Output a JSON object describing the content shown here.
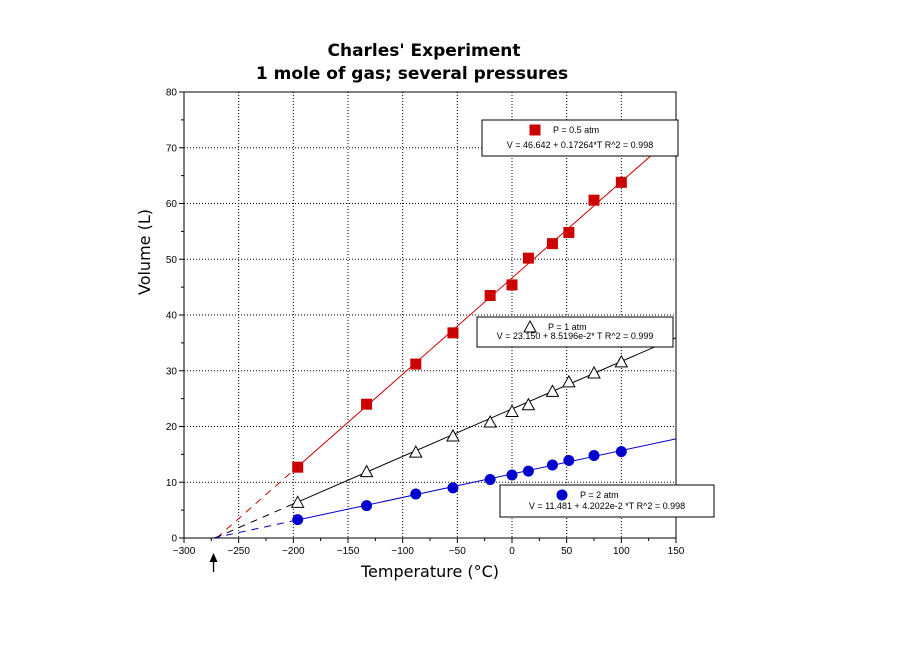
{
  "chart_data": {
    "type": "scatter",
    "title_line1": "Charles' Experiment",
    "title_line2": "1 mole of gas;   several pressures",
    "xlabel": "Temperature (°C)",
    "ylabel": "Volume (L)",
    "xlim": [
      -300,
      150
    ],
    "ylim": [
      0,
      80
    ],
    "x_ticks": [
      -300,
      -250,
      -200,
      -150,
      -100,
      -50,
      0,
      50,
      100,
      150
    ],
    "x_tick_labels": [
      "−300",
      "−250",
      "−200",
      "−150",
      "−100",
      "−50",
      "0",
      "50",
      "100",
      "150"
    ],
    "y_ticks": [
      0,
      10,
      20,
      30,
      40,
      50,
      60,
      70,
      80
    ],
    "y_tick_labels": [
      "0",
      "10",
      "20",
      "30",
      "40",
      "50",
      "60",
      "70",
      "80"
    ],
    "grid": true,
    "zero_point_arrow_x": -273,
    "series": [
      {
        "name": "P = 0.5 atm",
        "color": "#cc0000",
        "marker": "square",
        "x": [
          -196,
          -133,
          -88,
          -54,
          -20,
          0,
          15,
          37,
          52,
          75,
          100
        ],
        "y": [
          12.7,
          24.0,
          31.2,
          36.8,
          43.5,
          45.4,
          50.2,
          52.8,
          54.8,
          60.6,
          63.8
        ],
        "fit_intercept": 46.642,
        "fit_slope": 0.17264,
        "fit_label": "V = 46.642 + 0.17264*T   R^2 = 0.998"
      },
      {
        "name": "P = 1 atm",
        "color": "#000000",
        "marker": "open-triangle",
        "x": [
          -196,
          -133,
          -88,
          -54,
          -20,
          0,
          15,
          37,
          52,
          75,
          100
        ],
        "y": [
          6.4,
          11.9,
          15.4,
          18.3,
          20.8,
          22.7,
          23.9,
          26.3,
          28.0,
          29.6,
          31.6
        ],
        "fit_intercept": 23.15,
        "fit_slope": 0.085196,
        "fit_label": "V = 23.150 + 8.5196e-2* T   R^2 = 0.999"
      },
      {
        "name": "P = 2 atm",
        "color": "#0000cc",
        "marker": "circle",
        "x": [
          -196,
          -133,
          -88,
          -54,
          -20,
          0,
          15,
          37,
          52,
          75,
          100
        ],
        "y": [
          3.3,
          5.8,
          7.9,
          9.0,
          10.5,
          11.3,
          12.0,
          13.1,
          13.9,
          14.8,
          15.5
        ],
        "fit_intercept": 11.481,
        "fit_slope": 0.042022,
        "fit_label": "V = 11.481 + 4.2022e-2 *T   R^2 = 0.998"
      }
    ]
  }
}
